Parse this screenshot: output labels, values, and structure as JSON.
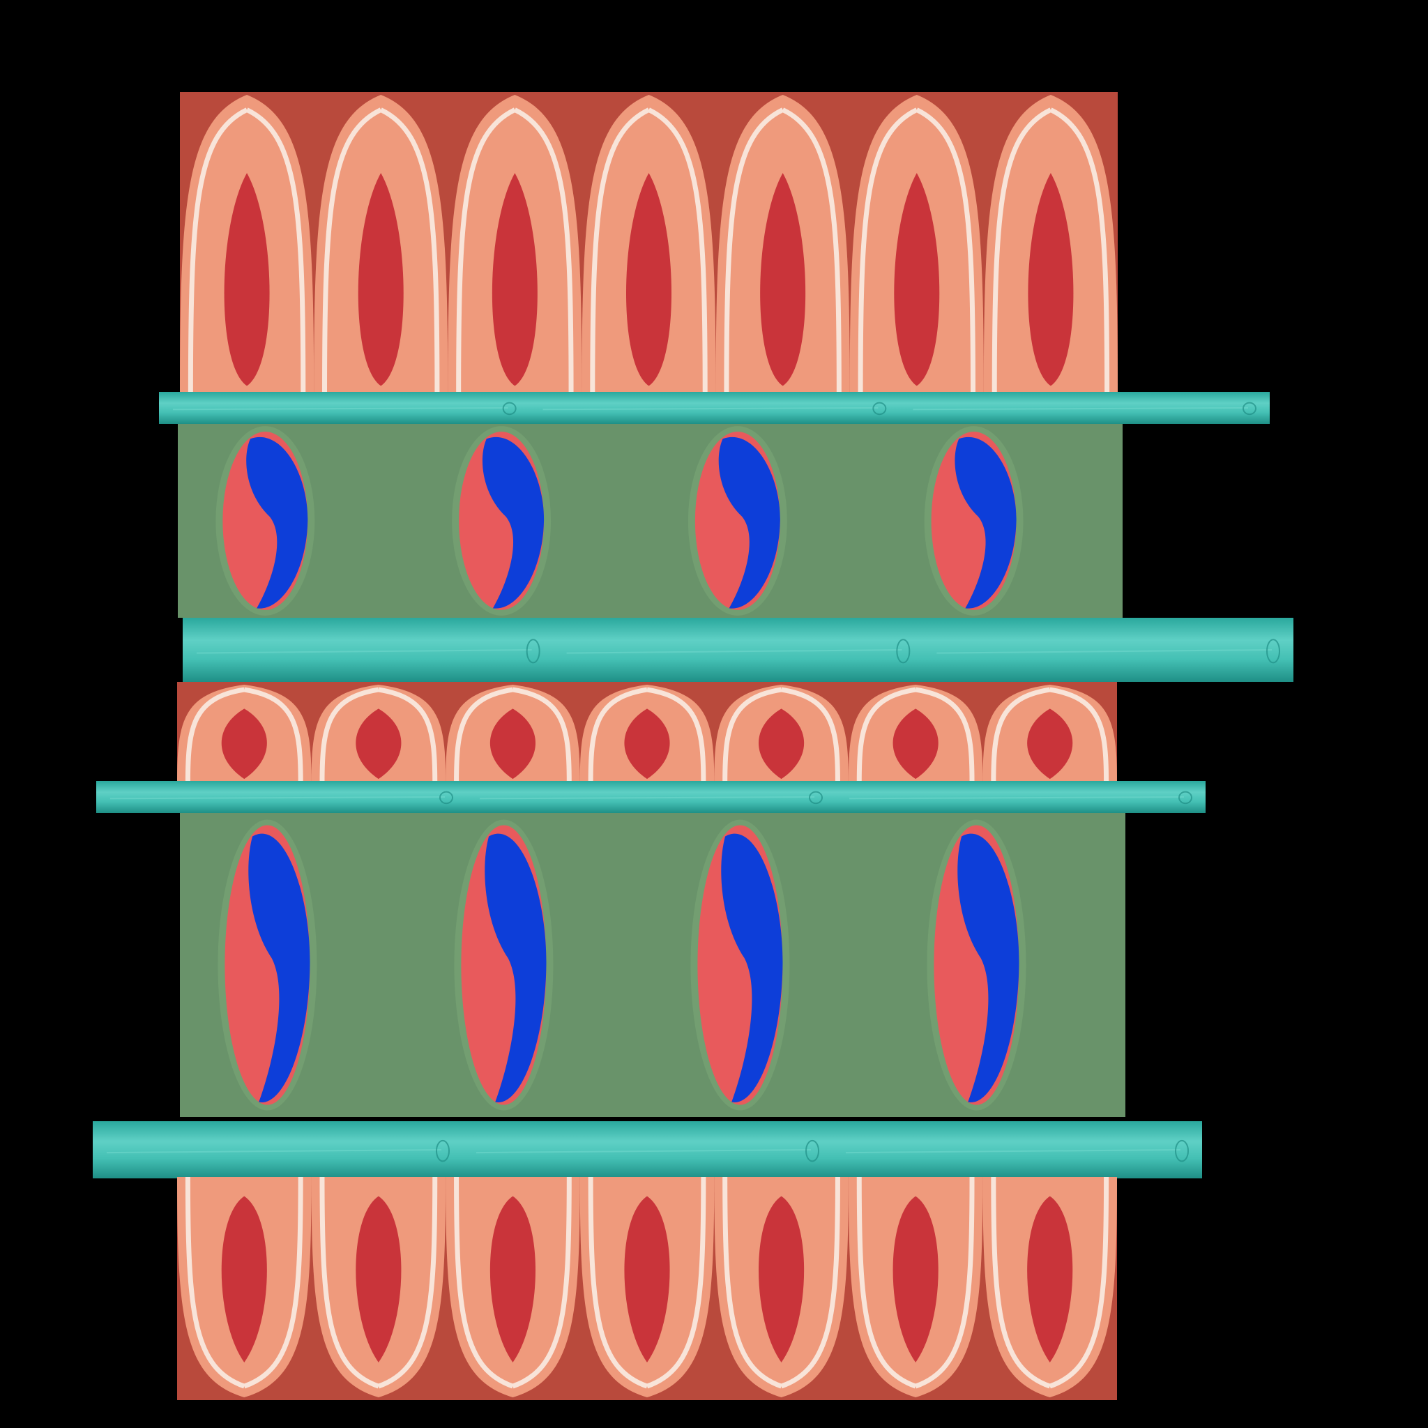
{
  "colors": {
    "background": "#000000",
    "petal_outer": "#b94a3c",
    "petal_body": "#ef9a7c",
    "petal_rim": "#f8e4d9",
    "petal_core": "#c9343a",
    "panel_green": "#69936a",
    "taeguk_red": "#e85a5c",
    "taeguk_blue": "#0d3ed9",
    "board_teal": "#3fbfb3",
    "board_teal_light": "#6fd8cc",
    "board_teal_dark": "#1f8f86"
  },
  "bands": [
    {
      "kind": "petal-row",
      "petals": 7
    },
    {
      "kind": "wood-plank",
      "segments": 3
    },
    {
      "kind": "taeguk-row",
      "symbols": 4
    },
    {
      "kind": "wood-plank",
      "segments": 3
    },
    {
      "kind": "petal-row",
      "petals": 7
    },
    {
      "kind": "wood-plank",
      "segments": 3
    },
    {
      "kind": "taeguk-row",
      "symbols": 4
    },
    {
      "kind": "wood-plank",
      "segments": 3
    },
    {
      "kind": "petal-row",
      "petals": 7
    }
  ]
}
